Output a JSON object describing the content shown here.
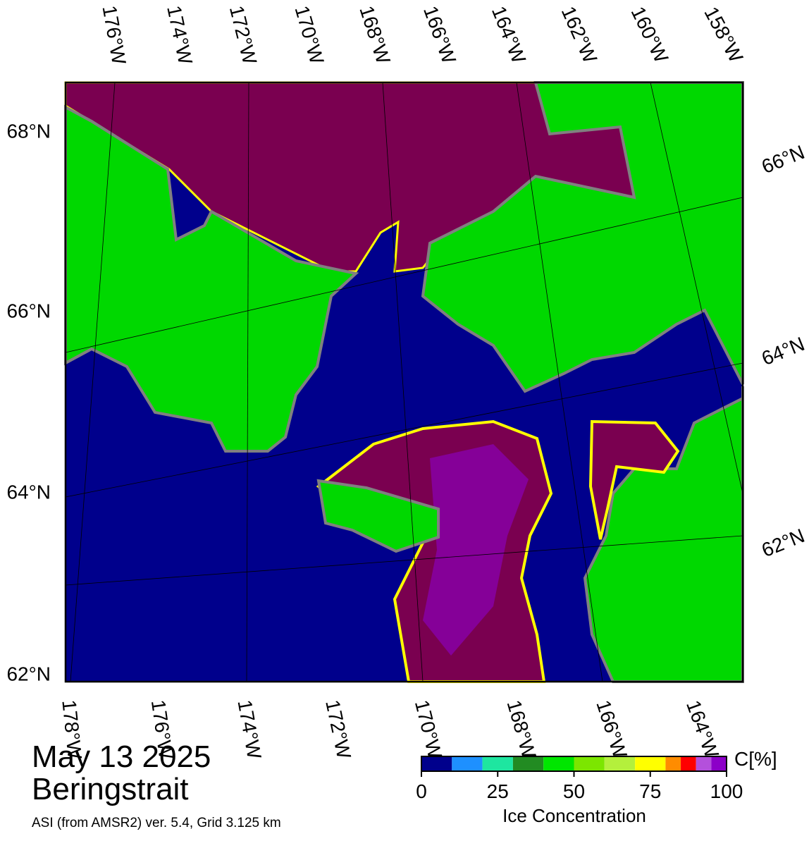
{
  "header": {
    "date": "May 13 2025",
    "region": "Beringstrait",
    "source": "ASI (from AMSR2) ver. 5.4,  Grid 3.125 km"
  },
  "map": {
    "top_labels": [
      "176°W",
      "174°W",
      "172°W",
      "170°W",
      "168°W",
      "166°W",
      "164°W",
      "162°W",
      "160°W",
      "158°W"
    ],
    "bottom_labels": [
      "178°W",
      "176°W",
      "174°W",
      "172°W",
      "170°W",
      "168°W",
      "166°W",
      "164°W"
    ],
    "left_labels": [
      "68°N",
      "66°N",
      "64°N",
      "62°N"
    ],
    "right_labels": [
      "66°N",
      "64°N",
      "62°N"
    ]
  },
  "colorbar": {
    "title": "Ice Concentration",
    "unit": "C[%]",
    "range": [
      0,
      100
    ],
    "ticks": [
      0,
      25,
      50,
      75,
      100
    ],
    "bins": [
      0,
      10,
      20,
      30,
      40,
      50,
      60,
      70,
      80,
      85,
      90,
      95,
      100
    ],
    "colors": [
      "#00008c",
      "#1e90ff",
      "#1ee6a0",
      "#228b22",
      "#00e600",
      "#7ce600",
      "#b4f03c",
      "#ffff00",
      "#ff8c00",
      "#ff0000",
      "#b450dc",
      "#8c00c8"
    ]
  }
}
